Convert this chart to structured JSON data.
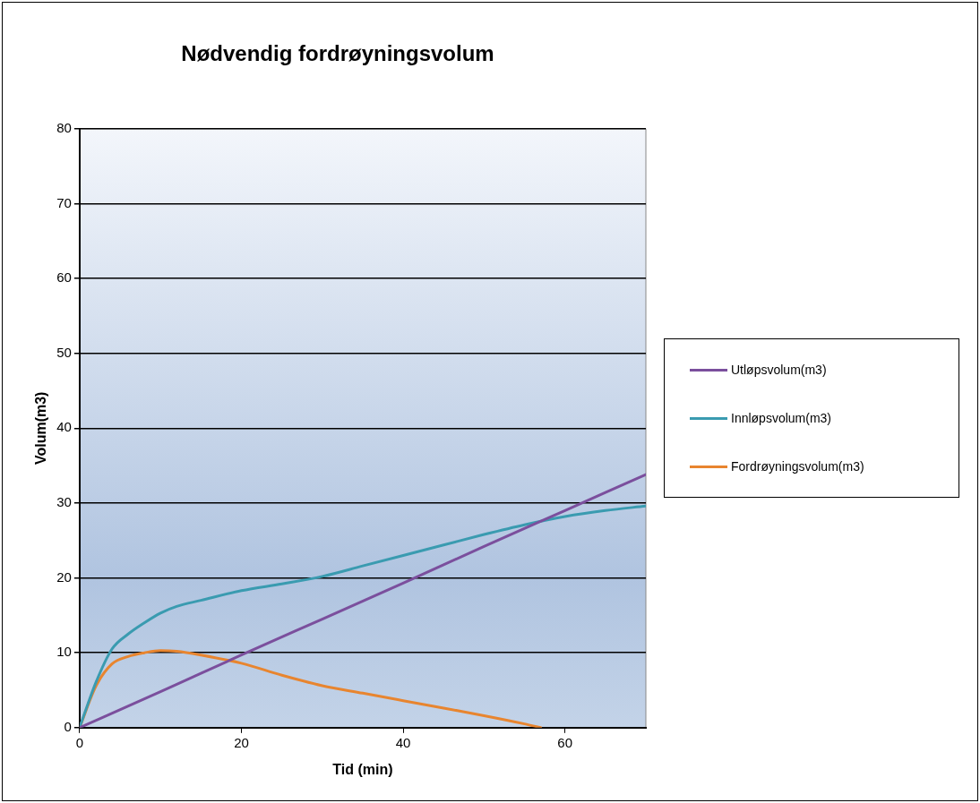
{
  "chart_data": {
    "type": "line",
    "title": "Nødvendig fordrøyningsvolum",
    "xlabel": "Tid (min)",
    "ylabel": "Volum(m3)",
    "xlim": [
      0,
      70
    ],
    "xticks": [
      0,
      20,
      40,
      60
    ],
    "ylim": [
      0,
      80
    ],
    "yticks": [
      0,
      10,
      20,
      30,
      40,
      50,
      60,
      70,
      80
    ],
    "grid": "y",
    "legend": "right",
    "marker": "none",
    "line_style": "solid",
    "series": [
      {
        "name": "Utløpsvolum(m3)",
        "color": "#7b4f9d",
        "x": [
          0,
          10,
          20,
          30,
          40,
          50,
          60,
          70
        ],
        "values": [
          0,
          4.8,
          9.7,
          14.5,
          19.3,
          24.2,
          29,
          33.8
        ]
      },
      {
        "name": "Innløpsvolum(m3)",
        "color": "#3a9bb0",
        "x": [
          0,
          2,
          4,
          6,
          8,
          10,
          12,
          15,
          20,
          25,
          30,
          35,
          40,
          45,
          50,
          55,
          60,
          65,
          70
        ],
        "values": [
          0,
          6,
          10.5,
          12.5,
          14,
          15.3,
          16.2,
          17,
          18.3,
          19.2,
          20.2,
          21.6,
          23,
          24.4,
          25.8,
          27.1,
          28.2,
          29,
          29.6
        ]
      },
      {
        "name": "Fordrøyningsvolum(m3)",
        "color": "#e8852f",
        "x": [
          0,
          2,
          4,
          6,
          8,
          10,
          12,
          15,
          20,
          25,
          30,
          35,
          40,
          45,
          50,
          55,
          57
        ],
        "values": [
          0,
          5.5,
          8.5,
          9.5,
          10,
          10.3,
          10.2,
          9.7,
          8.6,
          7,
          5.6,
          4.6,
          3.6,
          2.6,
          1.6,
          0.5,
          0
        ]
      }
    ]
  }
}
